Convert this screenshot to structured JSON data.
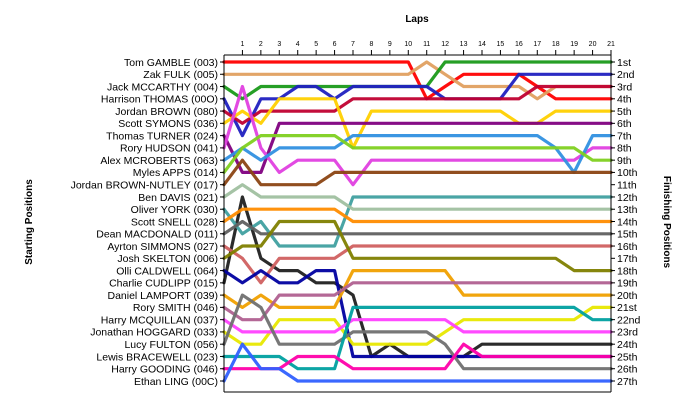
{
  "chart_data": {
    "type": "line",
    "title": "",
    "xlabel": "Laps",
    "ylabel_left": "Starting Positions",
    "ylabel_right": "Finishing Positions",
    "x": [
      0,
      1,
      2,
      3,
      4,
      5,
      6,
      7,
      8,
      9,
      10,
      11,
      12,
      13,
      14,
      15,
      16,
      17,
      18,
      19,
      20,
      21
    ],
    "x_tick_labels": [
      "1",
      "2",
      "3",
      "4",
      "5",
      "6",
      "7",
      "8",
      "9",
      "10",
      "11",
      "12",
      "13",
      "14",
      "15",
      "16",
      "17",
      "18",
      "19",
      "20",
      "21"
    ],
    "y_inverted": true,
    "ylim": [
      1,
      27
    ],
    "starting_grid": [
      "Tom GAMBLE (003)",
      "Zak FULK (005)",
      "Jack MCCARTHY (004)",
      "Harrison THOMAS (00O)",
      "Jordan BROWN (080)",
      "Scott SYMONS (036)",
      "Thomas TURNER (024)",
      "Rory HUDSON (041)",
      "Alex MCROBERTS (063)",
      "Myles APPS (014)",
      "Jordan BROWN-NUTLEY (017)",
      "Ben DAVIS (021)",
      "Oliver YORK (030)",
      "Scott SNELL (028)",
      "Dean MACDONALD (011)",
      "Ayrton SIMMONS (027)",
      "Josh SKELTON (006)",
      "Olli CALDWELL (064)",
      "Charlie CUDLIPP (015)",
      "Daniel LAMPORT (039)",
      "Rory SMITH (046)",
      "Harry MCQUILLAN (037)",
      "Jonathan HOGGARD (033)",
      "Lucy FULTON (056)",
      "Lewis BRACEWELL (023)",
      "Harry GOODING (046)",
      "Ethan LING (00C)"
    ],
    "finishing_labels": [
      "1st",
      "2nd",
      "3rd",
      "4th",
      "5th",
      "6th",
      "7th",
      "8th",
      "9th",
      "10th",
      "11th",
      "12th",
      "13th",
      "14th",
      "15th",
      "16th",
      "17th",
      "18th",
      "19th",
      "20th",
      "21st",
      "22nd",
      "23rd",
      "24th",
      "25th",
      "26th",
      "27th"
    ],
    "series": [
      {
        "color": "#ff0000",
        "values": [
          1,
          1,
          1,
          1,
          1,
          1,
          1,
          1,
          1,
          1,
          1,
          4,
          3,
          2,
          2,
          2,
          2,
          3,
          4,
          4,
          4,
          4
        ]
      },
      {
        "color": "#e0a060",
        "values": [
          2,
          2,
          2,
          2,
          2,
          2,
          2,
          2,
          2,
          2,
          2,
          1,
          2,
          3,
          3,
          3,
          3,
          4,
          3,
          3,
          3,
          3
        ]
      },
      {
        "color": "#1a9a1a",
        "values": [
          3,
          4,
          3,
          3,
          3,
          3,
          3,
          3,
          3,
          3,
          3,
          3,
          1,
          1,
          1,
          1,
          1,
          1,
          1,
          1,
          1,
          1
        ]
      },
      {
        "color": "#2020c0",
        "values": [
          4,
          7,
          4,
          4,
          3,
          3,
          4,
          3,
          3,
          3,
          3,
          3,
          4,
          4,
          4,
          4,
          2,
          2,
          2,
          2,
          2,
          2
        ]
      },
      {
        "color": "#c00030",
        "values": [
          5,
          6,
          5,
          5,
          5,
          5,
          5,
          4,
          4,
          4,
          4,
          4,
          4,
          4,
          4,
          4,
          4,
          3,
          3,
          3,
          3,
          3
        ]
      },
      {
        "color": "#ffd000",
        "values": [
          6,
          5,
          6,
          4,
          4,
          4,
          4,
          8,
          5,
          5,
          5,
          5,
          5,
          5,
          5,
          5,
          6,
          6,
          5,
          5,
          5,
          5
        ]
      },
      {
        "color": "#800080",
        "values": [
          7,
          10,
          10,
          6,
          6,
          6,
          6,
          6,
          6,
          6,
          6,
          6,
          6,
          6,
          6,
          6,
          6,
          6,
          6,
          6,
          6,
          6
        ]
      },
      {
        "color": "#e040e0",
        "values": [
          8,
          3,
          8,
          10,
          9,
          9,
          9,
          11,
          9,
          9,
          9,
          9,
          9,
          9,
          9,
          9,
          9,
          9,
          9,
          9,
          8,
          8
        ]
      },
      {
        "color": "#3090e0",
        "values": [
          9,
          8,
          9,
          8,
          8,
          8,
          8,
          7,
          7,
          7,
          7,
          7,
          7,
          7,
          7,
          7,
          7,
          7,
          8,
          10,
          7,
          7
        ]
      },
      {
        "color": "#80d020",
        "values": [
          10,
          8,
          7,
          7,
          7,
          7,
          7,
          8,
          8,
          8,
          8,
          8,
          8,
          8,
          8,
          8,
          8,
          8,
          8,
          8,
          9,
          9
        ]
      },
      {
        "color": "#8b4513",
        "values": [
          11,
          9,
          11,
          11,
          11,
          11,
          10,
          10,
          10,
          10,
          10,
          10,
          10,
          10,
          10,
          10,
          10,
          10,
          10,
          10,
          10,
          10
        ]
      },
      {
        "color": "#202020",
        "values": [
          19,
          12,
          17,
          18,
          18,
          19,
          19,
          20,
          25,
          24,
          25,
          25,
          25,
          25,
          24,
          24,
          24,
          24,
          24,
          24,
          24,
          24
        ]
      },
      {
        "color": "#40a0a0",
        "values": [
          13,
          15,
          14,
          16,
          16,
          16,
          16,
          12,
          12,
          12,
          12,
          12,
          12,
          12,
          12,
          12,
          12,
          12,
          12,
          12,
          12,
          12
        ]
      },
      {
        "color": "#ff8c00",
        "values": [
          14,
          13,
          13,
          13,
          13,
          13,
          13,
          14,
          14,
          14,
          14,
          14,
          14,
          14,
          14,
          14,
          14,
          14,
          14,
          14,
          14,
          14
        ]
      },
      {
        "color": "#606060",
        "values": [
          15,
          14,
          15,
          15,
          15,
          15,
          15,
          15,
          15,
          15,
          15,
          15,
          15,
          15,
          15,
          15,
          15,
          15,
          15,
          15,
          15,
          15
        ]
      },
      {
        "color": "#d06060",
        "values": [
          16,
          17,
          19,
          17,
          17,
          17,
          17,
          16,
          16,
          16,
          16,
          16,
          16,
          16,
          16,
          16,
          16,
          16,
          16,
          16,
          16,
          16
        ]
      },
      {
        "color": "#808000",
        "values": [
          17,
          16,
          16,
          14,
          14,
          14,
          14,
          17,
          17,
          17,
          17,
          17,
          17,
          17,
          17,
          17,
          17,
          17,
          17,
          18,
          18,
          18
        ]
      },
      {
        "color": "#0000a0",
        "values": [
          18,
          19,
          18,
          19,
          19,
          18,
          18,
          25,
          25,
          25,
          25,
          25,
          25,
          25,
          25,
          25,
          25,
          25,
          25,
          25,
          25,
          25
        ]
      },
      {
        "color": "#f0a000",
        "values": [
          20,
          21,
          20,
          21,
          21,
          21,
          21,
          18,
          18,
          18,
          18,
          18,
          18,
          20,
          20,
          20,
          20,
          20,
          20,
          20,
          20,
          20
        ]
      },
      {
        "color": "#b06090",
        "values": [
          21,
          22,
          22,
          20,
          20,
          20,
          20,
          19,
          19,
          19,
          19,
          19,
          19,
          19,
          19,
          19,
          19,
          19,
          19,
          19,
          19,
          19
        ]
      },
      {
        "color": "#e8e800",
        "values": [
          23,
          24,
          24,
          22,
          22,
          22,
          22,
          24,
          24,
          24,
          24,
          24,
          23,
          22,
          22,
          22,
          22,
          22,
          22,
          22,
          21,
          21
        ]
      },
      {
        "color": "#ff40ff",
        "values": [
          22,
          23,
          23,
          23,
          23,
          23,
          23,
          22,
          22,
          22,
          22,
          22,
          22,
          23,
          23,
          23,
          23,
          23,
          23,
          23,
          23,
          23
        ]
      },
      {
        "color": "#707070",
        "values": [
          24,
          20,
          21,
          24,
          24,
          24,
          24,
          23,
          23,
          23,
          23,
          23,
          24,
          26,
          26,
          26,
          26,
          26,
          26,
          26,
          26,
          26
        ]
      },
      {
        "color": "#00a0a0",
        "values": [
          25,
          25,
          25,
          25,
          26,
          26,
          26,
          21,
          21,
          21,
          21,
          21,
          21,
          21,
          21,
          21,
          21,
          21,
          21,
          21,
          22,
          22
        ]
      },
      {
        "color": "#ff00aa",
        "values": [
          26,
          26,
          26,
          26,
          25,
          25,
          25,
          26,
          26,
          26,
          26,
          26,
          26,
          24,
          25,
          25,
          25,
          25,
          25,
          25,
          25,
          25
        ]
      },
      {
        "color": "#3060ff",
        "values": [
          27,
          24,
          26,
          26,
          27,
          27,
          27,
          27,
          27,
          27,
          27,
          27,
          27,
          27,
          27,
          27,
          27,
          27,
          27,
          27,
          27,
          27
        ]
      },
      {
        "color": "#a0c0a0",
        "values": [
          12,
          11,
          12,
          12,
          12,
          12,
          12,
          13,
          13,
          13,
          13,
          13,
          13,
          13,
          13,
          13,
          13,
          13,
          13,
          13,
          13,
          13
        ]
      }
    ]
  }
}
